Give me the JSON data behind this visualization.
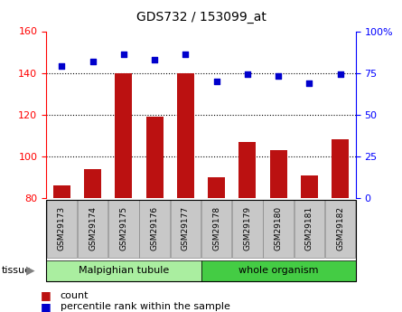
{
  "title": "GDS732 / 153099_at",
  "samples": [
    "GSM29173",
    "GSM29174",
    "GSM29175",
    "GSM29176",
    "GSM29177",
    "GSM29178",
    "GSM29179",
    "GSM29180",
    "GSM29181",
    "GSM29182"
  ],
  "count_values": [
    86,
    94,
    140,
    119,
    140,
    90,
    107,
    103,
    91,
    108
  ],
  "percentile_values": [
    79,
    82,
    86,
    83,
    86,
    70,
    74,
    73,
    69,
    74
  ],
  "ylim_left": [
    80,
    160
  ],
  "ylim_right": [
    0,
    100
  ],
  "yticks_left": [
    80,
    100,
    120,
    140,
    160
  ],
  "yticks_right": [
    0,
    25,
    50,
    75,
    100
  ],
  "bar_color": "#BB1111",
  "dot_color": "#0000CC",
  "tissue_groups": [
    {
      "label": "Malpighian tubule",
      "count": 5,
      "color": "#AAEEA0"
    },
    {
      "label": "whole organism",
      "count": 5,
      "color": "#44CC44"
    }
  ],
  "legend_count_label": "count",
  "legend_pct_label": "percentile rank within the sample",
  "tissue_label": "tissue"
}
